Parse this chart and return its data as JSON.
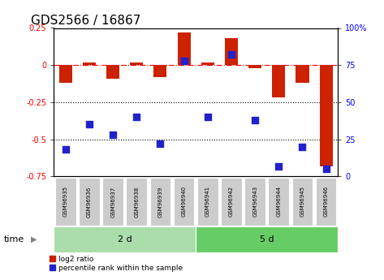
{
  "title": "GDS2566 / 16867",
  "samples": [
    "GSM96935",
    "GSM96936",
    "GSM96937",
    "GSM96938",
    "GSM96939",
    "GSM96940",
    "GSM96941",
    "GSM96942",
    "GSM96943",
    "GSM96944",
    "GSM96945",
    "GSM96946"
  ],
  "log2_ratio": [
    -0.12,
    0.02,
    -0.09,
    0.02,
    -0.08,
    0.22,
    0.02,
    0.18,
    -0.02,
    -0.22,
    -0.12,
    -0.68
  ],
  "pct_rank": [
    18,
    35,
    28,
    40,
    22,
    78,
    40,
    82,
    38,
    7,
    20,
    5
  ],
  "group1_samples": 6,
  "group2_samples": 6,
  "group1_label": "2 d",
  "group2_label": "5 d",
  "group_label": "time",
  "bar_color": "#cc2200",
  "dot_color": "#2222cc",
  "ylim_left": [
    -0.75,
    0.25
  ],
  "ylim_right": [
    0,
    100
  ],
  "yticks_left": [
    0.25,
    0,
    -0.25,
    -0.5,
    -0.75
  ],
  "yticks_right": [
    100,
    75,
    50,
    25,
    0
  ],
  "hlines": [
    -0.25,
    -0.5
  ],
  "hline_zero": 0.0,
  "group1_color": "#aaddaa",
  "group2_color": "#66cc66",
  "sample_box_color": "#cccccc",
  "legend_bar_label": "log2 ratio",
  "legend_dot_label": "percentile rank within the sample",
  "title_fontsize": 11,
  "tick_fontsize": 7,
  "label_fontsize": 8,
  "bar_width": 0.55
}
